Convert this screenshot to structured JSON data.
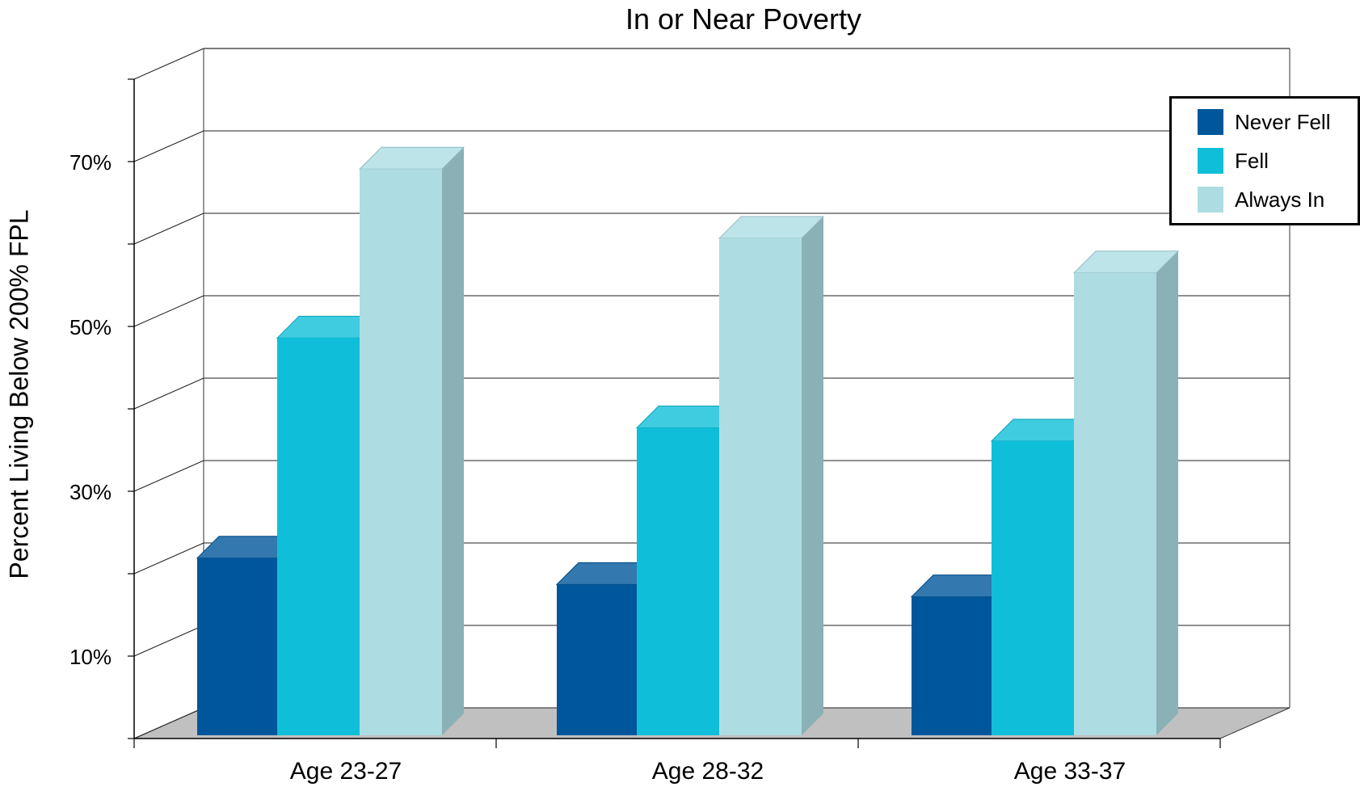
{
  "chart_data": {
    "type": "bar",
    "title": "In or Near Poverty",
    "ylabel": "Percent Living Below 200% FPL",
    "xlabel": "",
    "categories": [
      "Age 23-27",
      "Age 28-32",
      "Age 33-37"
    ],
    "series": [
      {
        "name": "Never Fell",
        "values": [
          21.5,
          18.3,
          16.8
        ],
        "color": "#00569a"
      },
      {
        "name": "Fell",
        "values": [
          48.2,
          37.3,
          35.7
        ],
        "color": "#0fbfd9"
      },
      {
        "name": "Always In",
        "values": [
          68.7,
          60.3,
          56.1
        ],
        "color": "#addde2"
      }
    ],
    "ylim": [
      0,
      80
    ],
    "yticks": [
      10,
      30,
      50,
      70
    ],
    "ytick_labels": [
      "10%",
      "30%",
      "50%",
      "70%"
    ],
    "grid": true,
    "legend_position": "top-right",
    "floor_color": "#c0c0c0"
  }
}
